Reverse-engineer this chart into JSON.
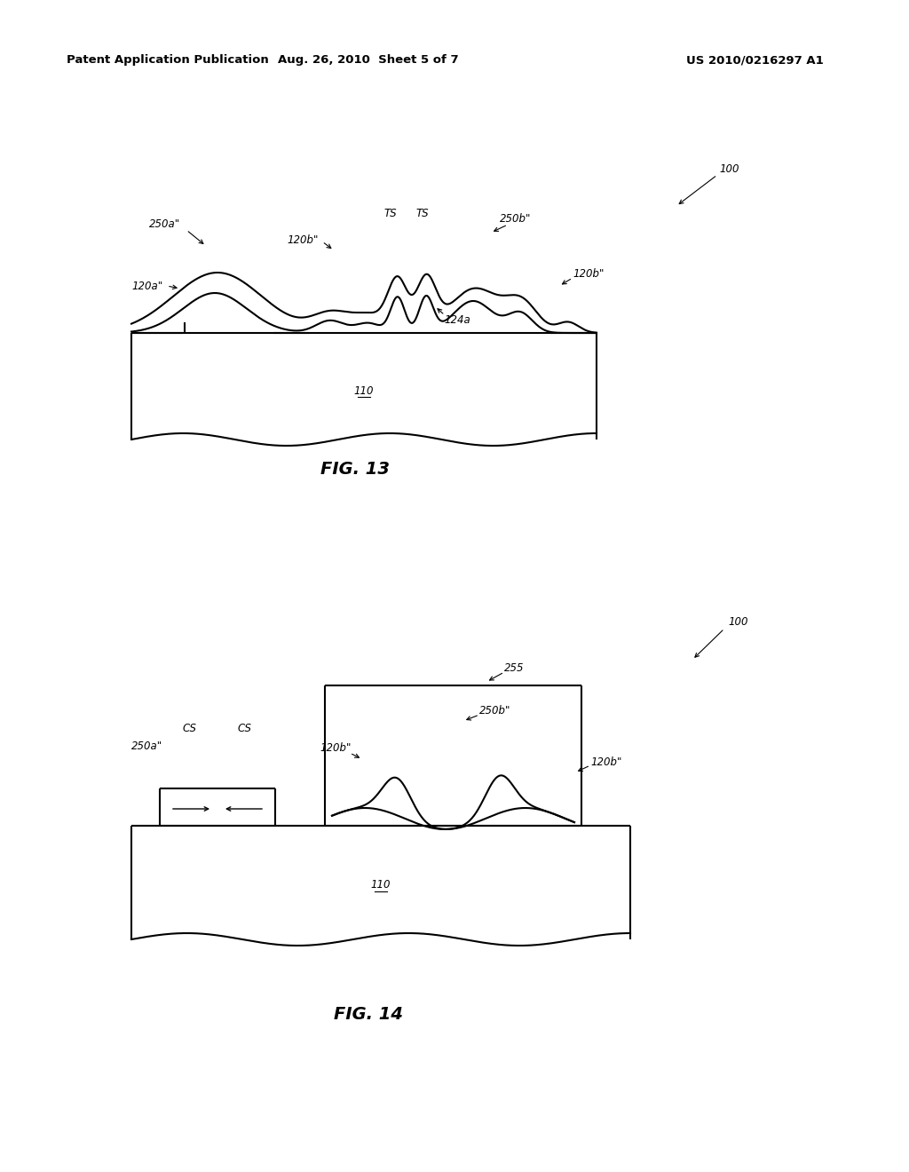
{
  "background_color": "#ffffff",
  "header_left": "Patent Application Publication",
  "header_center": "Aug. 26, 2010  Sheet 5 of 7",
  "header_right": "US 2010/0216297 A1",
  "fig13_label": "FIG. 13",
  "fig14_label": "FIG. 14",
  "line_color": "#000000",
  "line_width": 1.5,
  "label_fontsize": 8.5,
  "fig_label_fontsize": 14,
  "header_fontsize": 9.5
}
